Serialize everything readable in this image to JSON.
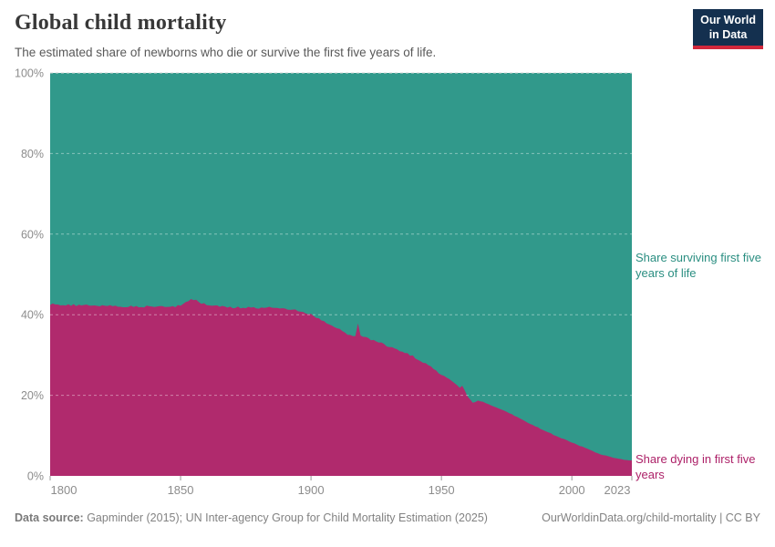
{
  "header": {
    "title": "Global child mortality",
    "subtitle": "The estimated share of newborns who die or survive the first five years of life.",
    "logo": {
      "line1": "Our World",
      "line2": "in Data"
    }
  },
  "annotations": {
    "surviving_label": "Share surviving first five years of life",
    "dying_label": "Share dying in first five years"
  },
  "footer": {
    "data_source_label": "Data source:",
    "data_source_text": " Gapminder (2015); UN Inter-agency Group for Child Mortality Estimation (2025)",
    "link": "OurWorldinData.org/child-mortality | CC BY"
  },
  "colors": {
    "surviving_area": "#31998b",
    "dying_area": "#b02a6d",
    "gridline_over_area": "rgba(255,255,255,0.42)",
    "gridline_top": "#d6d6d6",
    "tick": "#999999",
    "logo_navy": "#14304f",
    "logo_red": "#d2283c"
  },
  "chart_data": {
    "type": "area",
    "stacked": true,
    "title": "Global child mortality",
    "xlabel": "",
    "ylabel": "",
    "xlim": [
      1800,
      2023
    ],
    "ylim": [
      0,
      100
    ],
    "grid": "horizontal-dashed",
    "legend_position": "right-of-plot",
    "x": [
      1800,
      1804,
      1808,
      1812,
      1816,
      1820,
      1824,
      1828,
      1832,
      1836,
      1840,
      1844,
      1848,
      1850,
      1852,
      1854,
      1856,
      1858,
      1860,
      1862,
      1865,
      1868,
      1872,
      1876,
      1880,
      1883,
      1886,
      1890,
      1893,
      1896,
      1900,
      1903,
      1906,
      1910,
      1913,
      1916,
      1917,
      1918,
      1919,
      1921,
      1924,
      1927,
      1930,
      1933,
      1936,
      1939,
      1942,
      1945,
      1948,
      1950,
      1952,
      1955,
      1957,
      1958,
      1960,
      1962,
      1964,
      1966,
      1968,
      1971,
      1974,
      1977,
      1980,
      1983,
      1986,
      1989,
      1992,
      1995,
      1998,
      2001,
      2004,
      2007,
      2010,
      2013,
      2016,
      2019,
      2021,
      2023
    ],
    "series": [
      {
        "name": "Share surviving first five years of life",
        "color": "#31998b",
        "values": [
          57.4,
          57.5,
          57.6,
          57.6,
          57.7,
          57.7,
          57.8,
          57.9,
          57.9,
          58.0,
          58.0,
          58.1,
          58.0,
          57.6,
          56.8,
          56.0,
          56.4,
          57.1,
          57.6,
          57.8,
          58.0,
          58.1,
          58.2,
          58.2,
          58.3,
          58.2,
          58.3,
          58.4,
          58.7,
          59.2,
          60.0,
          61.0,
          62.0,
          63.4,
          64.5,
          65.4,
          65.5,
          62.1,
          65.3,
          65.7,
          66.3,
          67.1,
          67.9,
          68.6,
          69.4,
          70.3,
          71.4,
          72.6,
          73.9,
          74.9,
          75.6,
          76.9,
          78.1,
          77.6,
          80.2,
          81.9,
          81.3,
          81.6,
          82.2,
          83.0,
          83.8,
          84.7,
          85.7,
          86.8,
          87.7,
          88.6,
          89.5,
          90.4,
          91.1,
          92.0,
          92.8,
          93.6,
          94.4,
          95.0,
          95.5,
          95.9,
          96.1,
          96.2
        ]
      },
      {
        "name": "Share dying in first five years",
        "color": "#b02a6d",
        "values": [
          42.6,
          42.5,
          42.4,
          42.4,
          42.3,
          42.3,
          42.2,
          42.1,
          42.1,
          42.0,
          42.0,
          41.9,
          42.0,
          42.4,
          43.2,
          44.0,
          43.6,
          42.9,
          42.4,
          42.2,
          42.0,
          41.9,
          41.8,
          41.8,
          41.7,
          41.8,
          41.7,
          41.6,
          41.3,
          40.8,
          40.0,
          39.0,
          38.0,
          36.6,
          35.5,
          34.6,
          34.5,
          37.9,
          34.7,
          34.3,
          33.7,
          32.9,
          32.1,
          31.4,
          30.6,
          29.7,
          28.6,
          27.4,
          26.1,
          25.1,
          24.4,
          23.1,
          21.9,
          22.4,
          19.8,
          18.1,
          18.7,
          18.4,
          17.8,
          17.0,
          16.2,
          15.3,
          14.3,
          13.2,
          12.3,
          11.4,
          10.5,
          9.6,
          8.9,
          8.0,
          7.2,
          6.4,
          5.6,
          5.0,
          4.5,
          4.1,
          3.9,
          3.8
        ]
      }
    ],
    "y_ticks": [
      {
        "value": 0,
        "label": "0%"
      },
      {
        "value": 20,
        "label": "20%"
      },
      {
        "value": 40,
        "label": "40%"
      },
      {
        "value": 60,
        "label": "60%"
      },
      {
        "value": 80,
        "label": "80%"
      },
      {
        "value": 100,
        "label": "100%"
      }
    ],
    "x_ticks": [
      {
        "value": 1800,
        "label": "1800"
      },
      {
        "value": 1850,
        "label": "1850"
      },
      {
        "value": 1900,
        "label": "1900"
      },
      {
        "value": 1950,
        "label": "1950"
      },
      {
        "value": 2000,
        "label": "2000"
      },
      {
        "value": 2023,
        "label": "2023"
      }
    ]
  }
}
